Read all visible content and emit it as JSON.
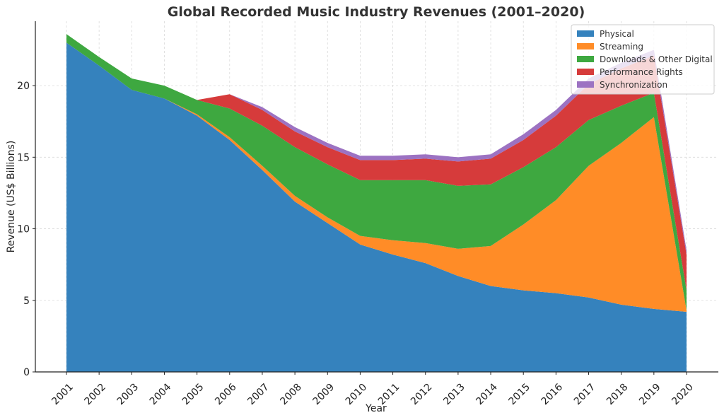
{
  "chart_data": {
    "type": "area",
    "stacked": true,
    "title": "Global Recorded Music Industry Revenues (2001–2020)",
    "xlabel": "Year",
    "ylabel": "Revenue (US$ Billions)",
    "ylim": [
      0,
      24.5
    ],
    "yticks": [
      0,
      5,
      10,
      15,
      20
    ],
    "grid": true,
    "legend_position": "top-right",
    "x": [
      "2001",
      "2002",
      "2003",
      "2004",
      "2005",
      "2006",
      "2007",
      "2008",
      "2009",
      "2010",
      "2011",
      "2012",
      "2013",
      "2014",
      "2015",
      "2016",
      "2017",
      "2018",
      "2019",
      "2020"
    ],
    "series": [
      {
        "name": "Physical",
        "color": "#3582bd",
        "values": [
          23.0,
          21.4,
          19.7,
          19.1,
          17.9,
          16.2,
          14.1,
          11.9,
          10.4,
          8.9,
          8.2,
          7.6,
          6.7,
          6.0,
          5.7,
          5.5,
          5.2,
          4.7,
          4.4,
          4.2
        ]
      },
      {
        "name": "Streaming",
        "color": "#ff8c27",
        "values": [
          0.0,
          0.0,
          0.0,
          0.0,
          0.1,
          0.2,
          0.3,
          0.4,
          0.4,
          0.6,
          1.0,
          1.4,
          1.9,
          2.8,
          4.6,
          6.5,
          9.2,
          11.3,
          13.4,
          0.1
        ]
      },
      {
        "name": "Downloads & Other Digital",
        "color": "#3ea840",
        "values": [
          0.6,
          0.6,
          0.8,
          0.9,
          1.0,
          2.0,
          2.8,
          3.4,
          3.7,
          3.9,
          4.2,
          4.4,
          4.4,
          4.3,
          4.0,
          3.7,
          3.2,
          2.6,
          1.7,
          1.4
        ]
      },
      {
        "name": "Performance Rights",
        "color": "#d63b3b",
        "values": [
          0.0,
          0.0,
          0.0,
          0.0,
          0.0,
          1.0,
          1.1,
          1.1,
          1.2,
          1.4,
          1.4,
          1.5,
          1.7,
          1.8,
          1.9,
          2.2,
          2.5,
          2.6,
          2.6,
          2.5
        ]
      },
      {
        "name": "Synchronization",
        "color": "#9c72c2",
        "values": [
          0.0,
          0.0,
          0.0,
          0.0,
          0.0,
          0.0,
          0.2,
          0.3,
          0.3,
          0.3,
          0.3,
          0.3,
          0.3,
          0.3,
          0.4,
          0.4,
          0.4,
          0.4,
          0.4,
          0.3
        ]
      }
    ]
  }
}
